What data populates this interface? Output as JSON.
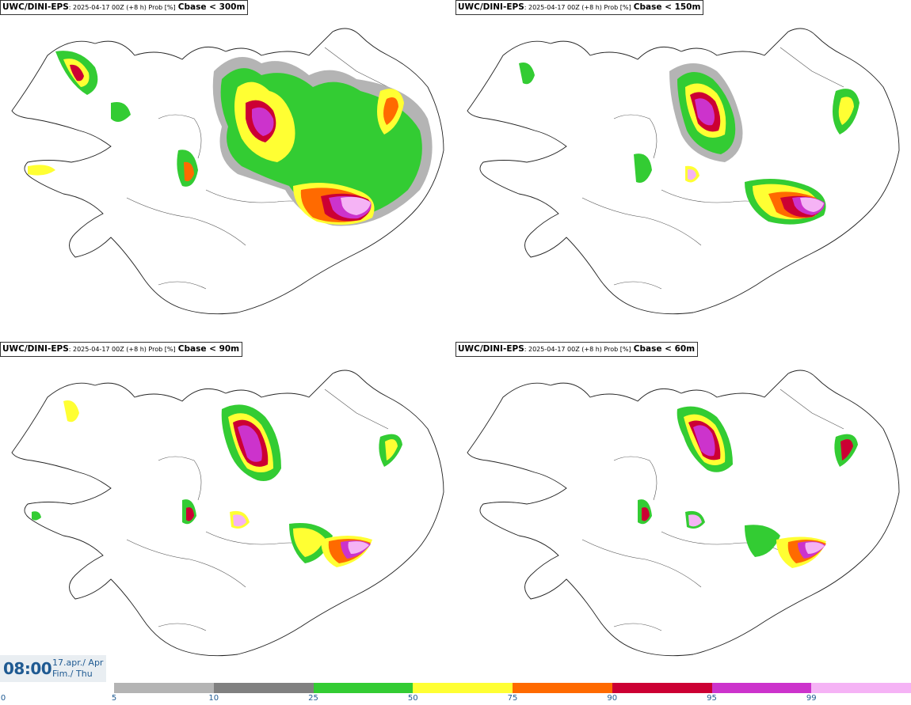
{
  "panels": [
    {
      "model": "UWC/DINI-EPS",
      "meta": ": 2025-04-17 00Z (+8 h) Prob [%]",
      "threshold": "Cbase < 300m"
    },
    {
      "model": "UWC/DINI-EPS",
      "meta": ": 2025-04-17 00Z (+8 h) Prob [%]",
      "threshold": "Cbase < 150m"
    },
    {
      "model": "UWC/DINI-EPS",
      "meta": ": 2025-04-17 00Z (+8 h) Prob [%]",
      "threshold": "Cbase < 90m"
    },
    {
      "model": "UWC/DINI-EPS",
      "meta": ": 2025-04-17 00Z (+8 h) Prob [%]",
      "threshold": "Cbase < 60m"
    }
  ],
  "time": {
    "clock": "08:00",
    "date_line1": "17.apr./ Apr",
    "date_line2": "Fim./ Thu"
  },
  "legend": {
    "ticks": [
      "0",
      "5",
      "10",
      "25",
      "50",
      "75",
      "90",
      "95",
      "99"
    ],
    "colors": [
      "#b4b4b4",
      "#808080",
      "#33cc33",
      "#ffff33",
      "#ff6a00",
      "#cc0033",
      "#cc33cc",
      "#f5b3f5"
    ]
  }
}
